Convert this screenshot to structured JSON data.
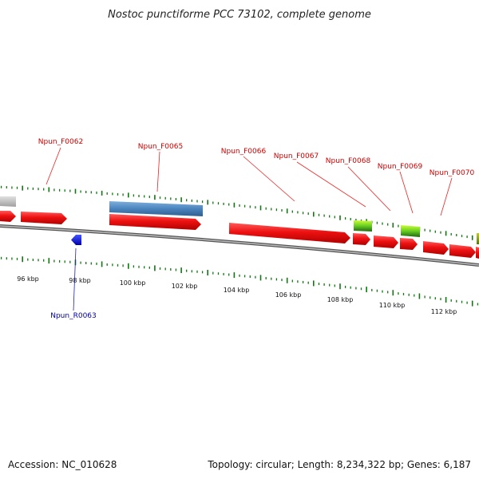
{
  "title": "Nostoc punctiforme PCC 73102, complete genome",
  "footer": {
    "accession": "Accession: NC_010628",
    "summary": "Topology: circular; Length: 8,234,322 bp; Genes: 6,187"
  },
  "colors": {
    "forward_gene": "#ee1111",
    "reverse_gene": "#0000ee",
    "blue_feature": "#4a84bd",
    "green_feature": "#66cc22",
    "tick": "#117711",
    "backbone": "#888888",
    "label_forward": "#cc0000",
    "label_reverse": "#000099"
  },
  "scale_labels": [
    "96 kbp",
    "98 kbp",
    "100 kbp",
    "102 kbp",
    "104 kbp",
    "106 kbp",
    "108 kbp",
    "110 kbp",
    "112 kbp"
  ],
  "gene_labels": [
    {
      "text": "Npun_F0062",
      "strand": "forward"
    },
    {
      "text": "Npun_F0065",
      "strand": "forward"
    },
    {
      "text": "Npun_F0066",
      "strand": "forward"
    },
    {
      "text": "Npun_F0067",
      "strand": "forward"
    },
    {
      "text": "Npun_F0068",
      "strand": "forward"
    },
    {
      "text": "Npun_F0069",
      "strand": "forward"
    },
    {
      "text": "Npun_F0070",
      "strand": "forward"
    },
    {
      "text": "Npun_R0063",
      "strand": "reverse"
    }
  ]
}
